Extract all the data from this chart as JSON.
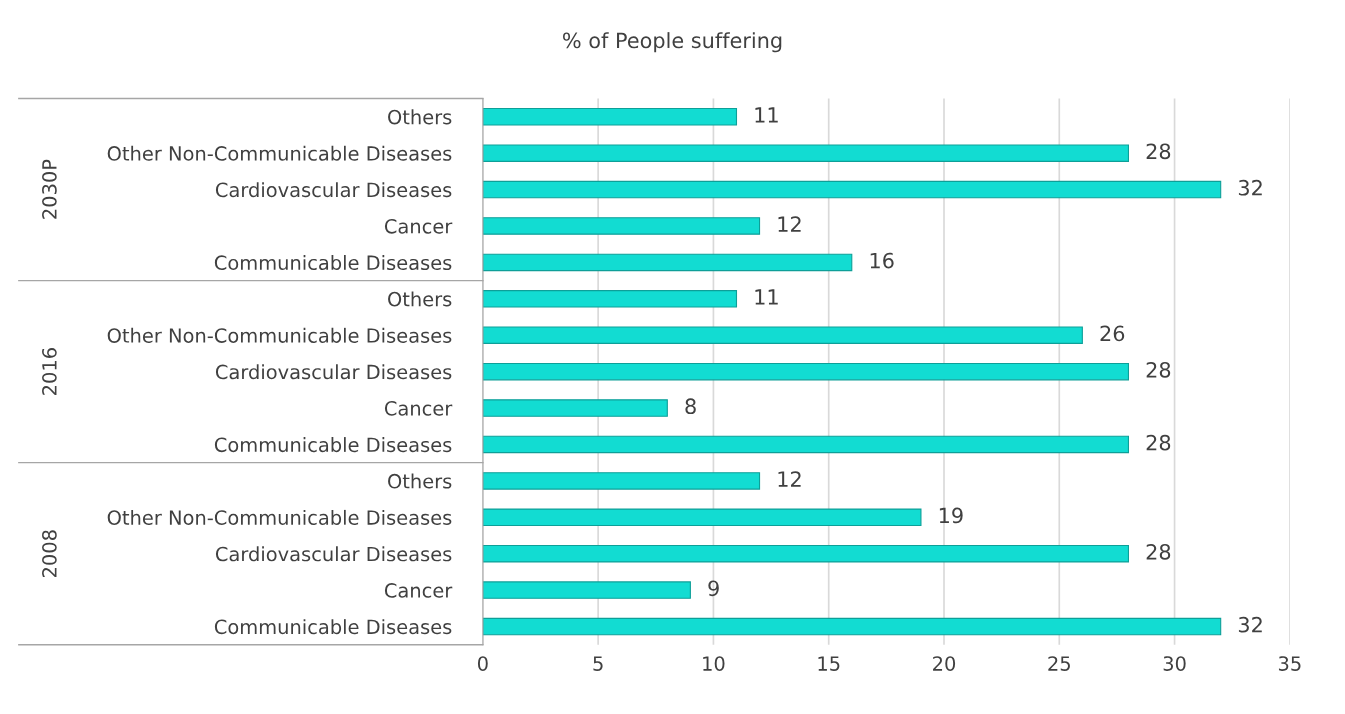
{
  "chart_data": {
    "type": "bar",
    "orientation": "horizontal",
    "title": "% of People suffering",
    "categories": [
      "Others",
      "Other Non-Communicable Diseases",
      "Cardiovascular Diseases",
      "Cancer",
      "Communicable Diseases",
      "Others",
      "Other Non-Communicable Diseases",
      "Cardiovascular Diseases",
      "Cancer",
      "Communicable Diseases",
      "Others",
      "Other Non-Communicable Diseases",
      "Cardiovascular Diseases",
      "Cancer",
      "Communicable Diseases"
    ],
    "values": [
      11,
      28,
      32,
      12,
      16,
      11,
      26,
      28,
      8,
      28,
      12,
      19,
      28,
      9,
      32
    ],
    "color": "#12dcd2",
    "annotations": [
      "2030P",
      "2016",
      "2008"
    ],
    "xlim": [
      0,
      35
    ],
    "xticks": [
      0,
      5,
      10,
      15,
      20,
      25,
      30,
      35
    ],
    "grid": "x",
    "data_labels": true
  }
}
